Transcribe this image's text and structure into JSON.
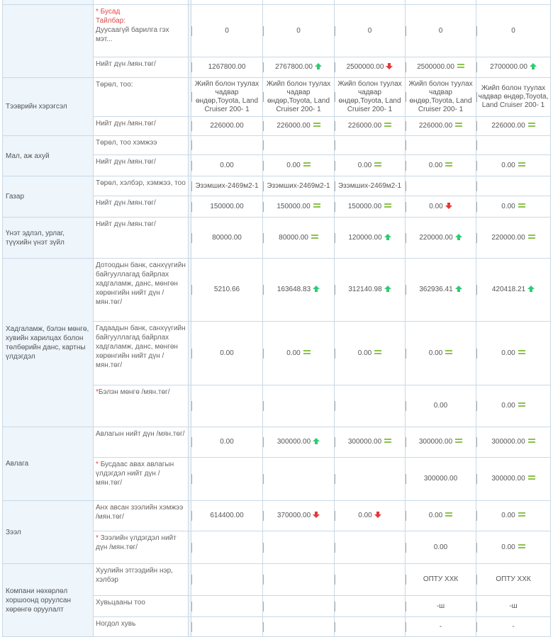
{
  "sections": {
    "other": {
      "label_req": "* Бусад",
      "label_note": "Тайлбар:",
      "label_text": "Дуусаагүй барилга гэх мэт...",
      "values": [
        "0",
        "0",
        "0",
        "0",
        "0"
      ],
      "total_label": "Нийт дүн /мян.төг/",
      "totals": [
        "1267800.00",
        "2767800.00",
        "2500000.00",
        "2500000.00",
        "2700000.00"
      ],
      "total_trend": [
        "",
        "up",
        "down",
        "eq",
        "up"
      ]
    },
    "vehicle": {
      "category": "Тээврийн хэрэгсэл",
      "type_label": "Төрөл, тоо:",
      "types": [
        "Жийп болон туулах чадвар өндөр,Toyota, Land Cruiser 200- 1",
        "Жийп болон туулах чадвар өндөр,Toyota, Land Cruiser 200- 1",
        "Жийп болон туулах чадвар өндөр,Toyota, Land Cruiser 200- 1",
        "Жийп болон туулах чадвар өндөр,Toyota, Land Cruiser 200- 1",
        "Жийп болон туулах чадвар өндөр,Toyota, Land Cruiser 200- 1"
      ],
      "total_label": "Нийт дүн /мян.төг/",
      "totals": [
        "226000.00",
        "226000.00",
        "226000.00",
        "226000.00",
        "226000.00"
      ],
      "total_trend": [
        "",
        "eq",
        "eq",
        "eq",
        "eq"
      ]
    },
    "livestock": {
      "category": "Мал, аж ахуй",
      "type_label": "Төрөл, тоо хэмжээ",
      "total_label": "Нийт дүн /мян.төг/",
      "totals": [
        "0.00",
        "0.00",
        "0.00",
        "0.00",
        "0.00"
      ],
      "total_trend": [
        "",
        "eq",
        "eq",
        "eq",
        "eq"
      ]
    },
    "land": {
      "category": "Газар",
      "type_label": "Төрөл, хэлбэр, хэмжээ, тоо",
      "types": [
        "Эзэмших-2469м2-1",
        "Эзэмших-2469м2-1",
        "Эзэмших-2469м2-1",
        "",
        ""
      ],
      "total_label": "Нийт дүн /мян.төг/",
      "totals": [
        "150000.00",
        "150000.00",
        "150000.00",
        "0.00",
        "0.00"
      ],
      "total_trend": [
        "",
        "eq",
        "eq",
        "down",
        "eq"
      ]
    },
    "valuables": {
      "category": "Үнэт эдлэл, урлаг, түүхийн үнэт зүйл",
      "total_label": "Нийт дүн /мян.төг/",
      "totals": [
        "80000.00",
        "80000.00",
        "120000.00",
        "220000.00",
        "220000.00"
      ],
      "total_trend": [
        "",
        "eq",
        "up",
        "up",
        "eq"
      ]
    },
    "savings": {
      "category": "Хадгаламж, бэлэн мөнгө, хувийн харилцах болон төлбөрийн данс, картны үлдэгдэл",
      "domestic_label": "Дотоодын банк, санхүүгийн байгууллагад байрлах хадгаламж, данс, мөнгөн хөрөнгийн нийт дүн /мян.төг/",
      "domestic": [
        "5210.66",
        "163648.83",
        "312140.98",
        "362936.41",
        "420418.21"
      ],
      "domestic_trend": [
        "",
        "up",
        "up",
        "up",
        "up"
      ],
      "foreign_label": "Гадаадын банк, санхүүгийн байгууллагад байрлах хадгаламж, данс, мөнгөн хөрөнгийн нийт дүн /мян.төг/",
      "foreign": [
        "0.00",
        "0.00",
        "0.00",
        "0.00",
        "0.00"
      ],
      "foreign_trend": [
        "",
        "eq",
        "eq",
        "eq",
        "eq"
      ],
      "cash_req": "*",
      "cash_label": "Бэлэн мөнгө /мян.төг/",
      "cash": [
        "",
        "",
        "",
        "0.00",
        "0.00"
      ],
      "cash_trend": [
        "",
        "",
        "",
        "",
        "eq"
      ]
    },
    "receivable": {
      "category": "Авлага",
      "total_label": "Авлагын нийт дүн /мян.төг/",
      "totals": [
        "0.00",
        "300000.00",
        "300000.00",
        "300000.00",
        "300000.00"
      ],
      "total_trend": [
        "",
        "up",
        "eq",
        "eq",
        "eq"
      ],
      "rem_req": "*",
      "rem_label": "Бусдаас авах авлагын үлдэгдэл нийт дүн /мян.төг/",
      "rem": [
        "",
        "",
        "",
        "300000.00",
        "300000.00"
      ],
      "rem_trend": [
        "",
        "",
        "",
        "",
        "eq"
      ]
    },
    "loan": {
      "category": "Зээл",
      "amount_label": "Анх авсан зээлийн хэмжээ /мян.төг/",
      "amount": [
        "614400.00",
        "370000.00",
        "0.00",
        "0.00",
        "0.00"
      ],
      "amount_trend": [
        "",
        "down",
        "down",
        "eq",
        "eq"
      ],
      "rem_req": "*",
      "rem_label": "Зээлийн үлдэгдэл нийт дүн /мян.төг/",
      "rem": [
        "",
        "",
        "",
        "0.00",
        "0.00"
      ],
      "rem_trend": [
        "",
        "",
        "",
        "",
        "eq"
      ]
    },
    "company": {
      "category": "Компани нөхөрлөл хоршоонд оруулсан хөрөнгө оруулалт",
      "name_label": "Хуулийн этгээдийн нэр, хэлбэр",
      "names": [
        "",
        "",
        "",
        "ОПТУ ХХК",
        "ОПТУ ХХК"
      ],
      "shares_label": "Хувьцааны тоо",
      "shares": [
        "",
        "",
        "",
        "-ш",
        "-ш"
      ],
      "pct_label": "Ногдол хувь",
      "pct": [
        "",
        "",
        "",
        "-",
        "-"
      ]
    }
  },
  "colors": {
    "up": "#2ecc71",
    "down": "#e53935",
    "eq": "#8bc34a",
    "border": "#c9d9e6",
    "cat_bg": "#eef5fb"
  }
}
